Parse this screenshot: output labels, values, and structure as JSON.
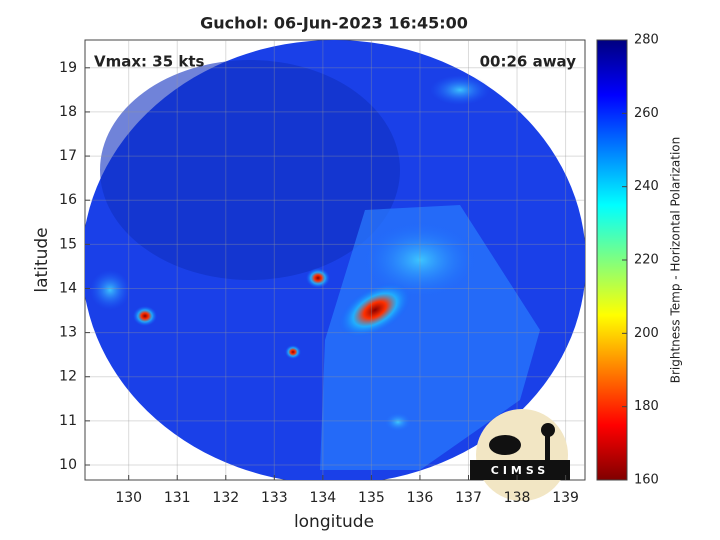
{
  "chart_data": {
    "type": "image",
    "title": "Guchol: 06-Jun-2023 16:45:00",
    "annotations": [
      "Vmax: 35 kts",
      "00:26 away"
    ],
    "xlabel": "longitude",
    "ylabel": "latitude",
    "xlim": [
      129.1,
      139.4
    ],
    "ylim": [
      9.66,
      19.63
    ],
    "xticks": [
      130,
      131,
      132,
      133,
      134,
      135,
      136,
      137,
      138,
      139
    ],
    "yticks": [
      10,
      11,
      12,
      13,
      14,
      15,
      16,
      17,
      18,
      19
    ],
    "grid": true,
    "colorbar": {
      "label": "Brightness Temp - Horizontal Polarization",
      "clim": [
        160,
        280
      ],
      "ticks": [
        160,
        180,
        200,
        220,
        240,
        260,
        280
      ],
      "colormap": "jet"
    },
    "logo": "CIMSS"
  }
}
